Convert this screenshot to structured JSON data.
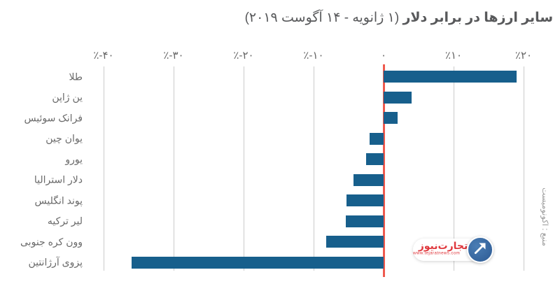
{
  "title": {
    "bold": "سایر ارزها در برابر دلار",
    "normal": "(۱ ژانویه - ۱۴ آگوست ۲۰۱۹)"
  },
  "source": "منبع : اکونومیست",
  "watermark": {
    "brand_word1": "تجارت",
    "brand_word2": "نیوز",
    "url": "www.tejaratnews.com",
    "icon": "arrow-northeast-icon",
    "brand_red": "#e0393e",
    "circle_blue": "#2d5a93"
  },
  "colors": {
    "bar": "#175f8c",
    "zero_line": "#ee5a4f",
    "grid": "#cccccc",
    "title_text": "#58595b",
    "axis_text": "#666666",
    "category_text": "#6a6a6a",
    "source_text": "#9a9a9a"
  },
  "chart_data": {
    "type": "bar",
    "orientation": "horizontal",
    "title": "سایر ارزها در برابر دلار (۱ ژانویه - ۱۴ آگوست ۲۰۱۹)",
    "unit": "%",
    "xlim": [
      -40,
      20
    ],
    "grid": true,
    "zero_line": true,
    "categories": [
      "طلا",
      "ین ژاپن",
      "فرانک سوئیس",
      "یوان چین",
      "یورو",
      "دلار استرالیا",
      "پوند انگلیس",
      "لیر ترکیه",
      "وون کره جنوبی",
      "پزوی آرژانتین"
    ],
    "values": [
      19,
      4,
      2,
      -2,
      -2.5,
      -4.3,
      -5.3,
      -5.4,
      -8.2,
      -36
    ],
    "ticks": [
      {
        "value": -40,
        "label": "٪-۴۰"
      },
      {
        "value": -30,
        "label": "٪-۳۰"
      },
      {
        "value": -20,
        "label": "٪-۲۰"
      },
      {
        "value": -10,
        "label": "٪-۱۰"
      },
      {
        "value": 0,
        "label": "۰"
      },
      {
        "value": 10,
        "label": "٪۱۰"
      },
      {
        "value": 20,
        "label": "٪۲۰"
      }
    ]
  }
}
